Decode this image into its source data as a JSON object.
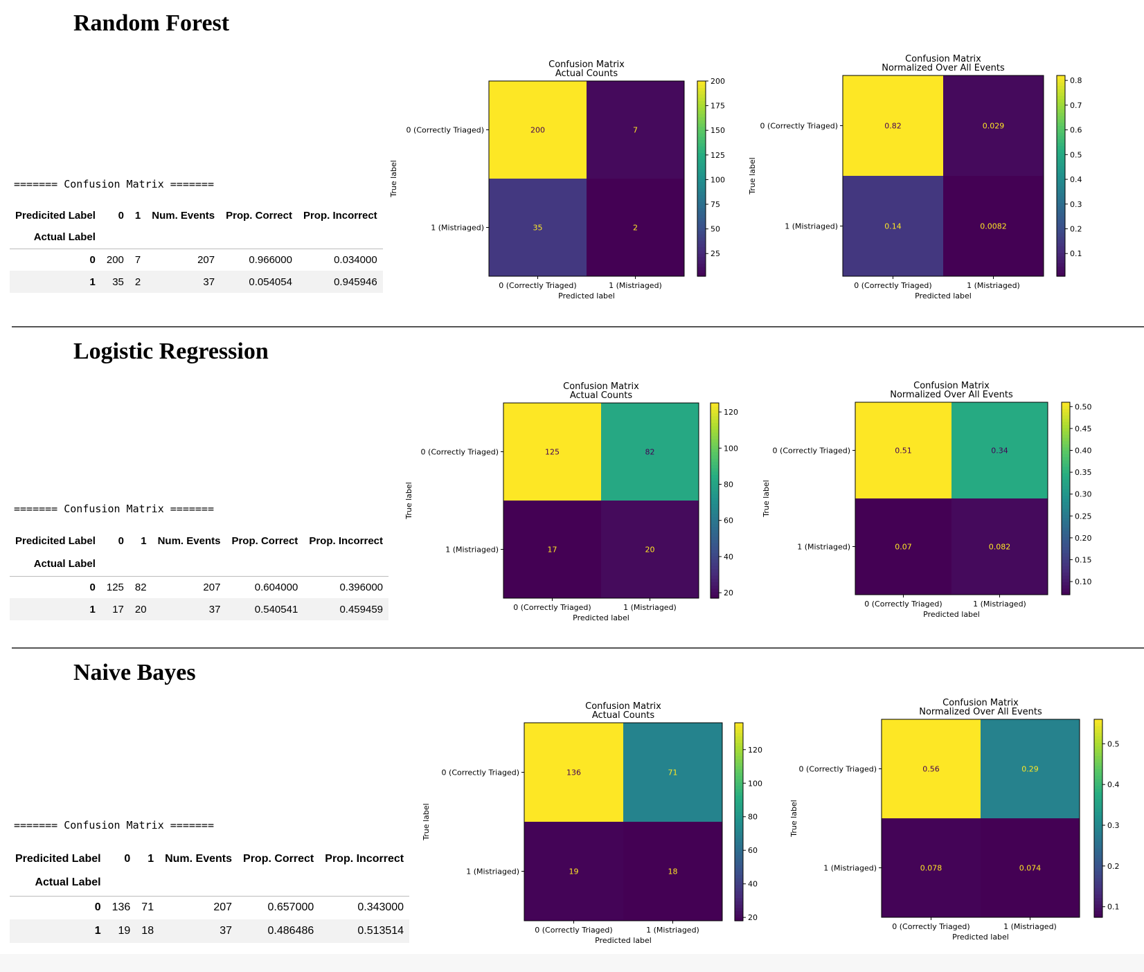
{
  "colors": {
    "viridis_low": "#440154",
    "viridis_high": "#fde725",
    "divider": "#555555"
  },
  "labels": {
    "true_label": "True label",
    "predicted_label": "Predicted label",
    "class0": "0 (Correctly Triaged)",
    "class1": "1 (Mistriaged)"
  },
  "sections": [
    {
      "title": "Random Forest",
      "banner": "======= Confusion Matrix =======",
      "table": {
        "headers": [
          "Predicited Label",
          "0",
          "1",
          "Num. Events",
          "Prop. Correct",
          "Prop. Incorrect"
        ],
        "index_header": "Actual Label",
        "rows": [
          [
            "0",
            "200",
            "7",
            "207",
            "0.966000",
            "0.034000"
          ],
          [
            "1",
            "35",
            "2",
            "37",
            "0.054054",
            "0.945946"
          ]
        ]
      }
    },
    {
      "title": "Logistic Regression",
      "banner": "======= Confusion Matrix =======",
      "table": {
        "headers": [
          "Predicited Label",
          "0",
          "1",
          "Num. Events",
          "Prop. Correct",
          "Prop. Incorrect"
        ],
        "index_header": "Actual Label",
        "rows": [
          [
            "0",
            "125",
            "82",
            "207",
            "0.604000",
            "0.396000"
          ],
          [
            "1",
            "17",
            "20",
            "37",
            "0.540541",
            "0.459459"
          ]
        ]
      }
    },
    {
      "title": "Naive Bayes",
      "banner": "======= Confusion Matrix =======",
      "table": {
        "headers": [
          "Predicited Label",
          "0",
          "1",
          "Num. Events",
          "Prop. Correct",
          "Prop. Incorrect"
        ],
        "index_header": "Actual Label",
        "rows": [
          [
            "0",
            "136",
            "71",
            "207",
            "0.657000",
            "0.343000"
          ],
          [
            "1",
            "19",
            "18",
            "37",
            "0.486486",
            "0.513514"
          ]
        ]
      }
    }
  ],
  "chart_data": [
    {
      "type": "heatmap",
      "model": "Random Forest",
      "title": [
        "Confusion Matrix",
        "Actual Counts"
      ],
      "xlabel": "Predicted label",
      "ylabel": "True label",
      "x_categories": [
        "0 (Correctly Triaged)",
        "1 (Mistriaged)"
      ],
      "y_categories": [
        "0 (Correctly Triaged)",
        "1 (Mistriaged)"
      ],
      "values": [
        [
          200,
          7
        ],
        [
          35,
          2
        ]
      ],
      "value_labels": [
        [
          "200",
          "7"
        ],
        [
          "35",
          "2"
        ]
      ],
      "colorbar": {
        "min": 2,
        "max": 200,
        "ticks": [
          25,
          50,
          75,
          100,
          125,
          150,
          175,
          200
        ],
        "tick_labels": [
          "25",
          "50",
          "75",
          "100",
          "125",
          "150",
          "175",
          "200"
        ]
      }
    },
    {
      "type": "heatmap",
      "model": "Random Forest",
      "title": [
        "Confusion Matrix",
        "Normalized Over All Events"
      ],
      "xlabel": "Predicted label",
      "ylabel": "True label",
      "x_categories": [
        "0 (Correctly Triaged)",
        "1 (Mistriaged)"
      ],
      "y_categories": [
        "0 (Correctly Triaged)",
        "1 (Mistriaged)"
      ],
      "values": [
        [
          0.82,
          0.029
        ],
        [
          0.14,
          0.0082
        ]
      ],
      "value_labels": [
        [
          "0.82",
          "0.029"
        ],
        [
          "0.14",
          "0.0082"
        ]
      ],
      "colorbar": {
        "min": 0.0082,
        "max": 0.82,
        "ticks": [
          0.1,
          0.2,
          0.3,
          0.4,
          0.5,
          0.6,
          0.7,
          0.8
        ],
        "tick_labels": [
          "0.1",
          "0.2",
          "0.3",
          "0.4",
          "0.5",
          "0.6",
          "0.7",
          "0.8"
        ]
      }
    },
    {
      "type": "heatmap",
      "model": "Logistic Regression",
      "title": [
        "Confusion Matrix",
        "Actual Counts"
      ],
      "xlabel": "Predicted label",
      "ylabel": "True label",
      "x_categories": [
        "0 (Correctly Triaged)",
        "1 (Mistriaged)"
      ],
      "y_categories": [
        "0 (Correctly Triaged)",
        "1 (Mistriaged)"
      ],
      "values": [
        [
          125,
          82
        ],
        [
          17,
          20
        ]
      ],
      "value_labels": [
        [
          "125",
          "82"
        ],
        [
          "17",
          "20"
        ]
      ],
      "colorbar": {
        "min": 17,
        "max": 125,
        "ticks": [
          20,
          40,
          60,
          80,
          100,
          120
        ],
        "tick_labels": [
          "20",
          "40",
          "60",
          "80",
          "100",
          "120"
        ]
      }
    },
    {
      "type": "heatmap",
      "model": "Logistic Regression",
      "title": [
        "Confusion Matrix",
        "Normalized Over All Events"
      ],
      "xlabel": "Predicted label",
      "ylabel": "True label",
      "x_categories": [
        "0 (Correctly Triaged)",
        "1 (Mistriaged)"
      ],
      "y_categories": [
        "0 (Correctly Triaged)",
        "1 (Mistriaged)"
      ],
      "values": [
        [
          0.51,
          0.34
        ],
        [
          0.07,
          0.082
        ]
      ],
      "value_labels": [
        [
          "0.51",
          "0.34"
        ],
        [
          "0.07",
          "0.082"
        ]
      ],
      "colorbar": {
        "min": 0.07,
        "max": 0.51,
        "ticks": [
          0.1,
          0.15,
          0.2,
          0.25,
          0.3,
          0.35,
          0.4,
          0.45,
          0.5
        ],
        "tick_labels": [
          "0.10",
          "0.15",
          "0.20",
          "0.25",
          "0.30",
          "0.35",
          "0.40",
          "0.45",
          "0.50"
        ]
      }
    },
    {
      "type": "heatmap",
      "model": "Naive Bayes",
      "title": [
        "Confusion Matrix",
        "Actual Counts"
      ],
      "xlabel": "Predicted label",
      "ylabel": "True label",
      "x_categories": [
        "0 (Correctly Triaged)",
        "1 (Mistriaged)"
      ],
      "y_categories": [
        "0 (Correctly Triaged)",
        "1 (Mistriaged)"
      ],
      "values": [
        [
          136,
          71
        ],
        [
          19,
          18
        ]
      ],
      "value_labels": [
        [
          "136",
          "71"
        ],
        [
          "19",
          "18"
        ]
      ],
      "colorbar": {
        "min": 18,
        "max": 136,
        "ticks": [
          20,
          40,
          60,
          80,
          100,
          120
        ],
        "tick_labels": [
          "20",
          "40",
          "60",
          "80",
          "100",
          "120"
        ]
      }
    },
    {
      "type": "heatmap",
      "model": "Naive Bayes",
      "title": [
        "Confusion Matrix",
        "Normalized Over All Events"
      ],
      "xlabel": "Predicted label",
      "ylabel": "True label",
      "x_categories": [
        "0 (Correctly Triaged)",
        "1 (Mistriaged)"
      ],
      "y_categories": [
        "0 (Correctly Triaged)",
        "1 (Mistriaged)"
      ],
      "values": [
        [
          0.56,
          0.29
        ],
        [
          0.078,
          0.074
        ]
      ],
      "value_labels": [
        [
          "0.56",
          "0.29"
        ],
        [
          "0.078",
          "0.074"
        ]
      ],
      "colorbar": {
        "min": 0.074,
        "max": 0.56,
        "ticks": [
          0.1,
          0.2,
          0.3,
          0.4,
          0.5
        ],
        "tick_labels": [
          "0.1",
          "0.2",
          "0.3",
          "0.4",
          "0.5"
        ]
      }
    }
  ]
}
